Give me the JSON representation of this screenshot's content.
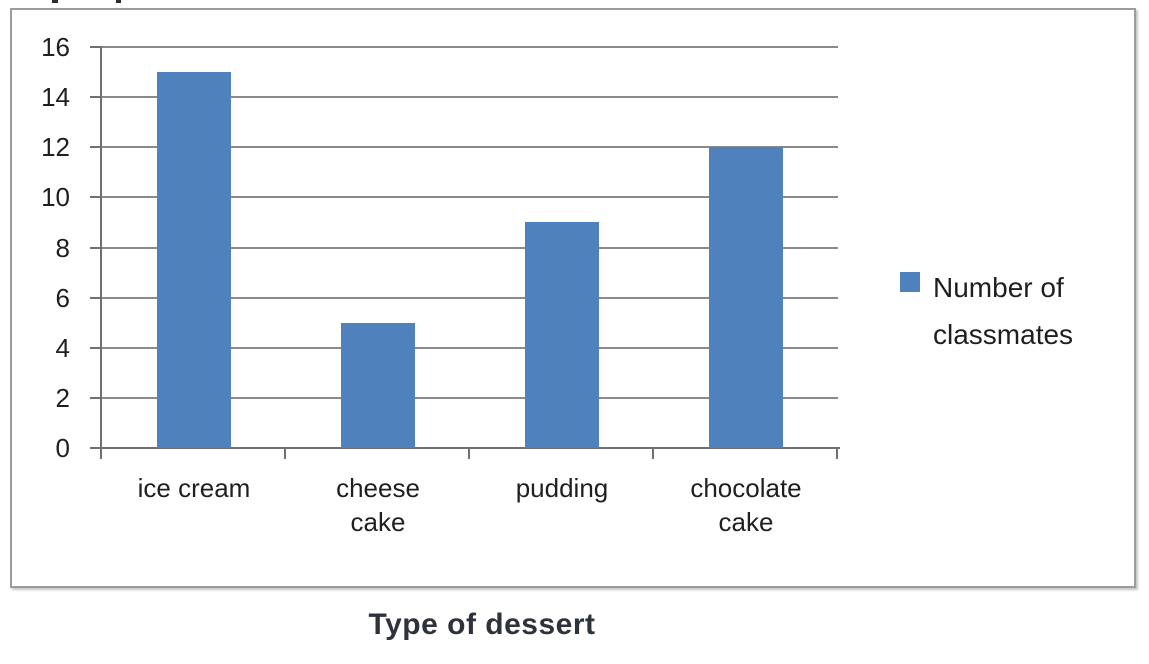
{
  "chart_data": {
    "type": "bar",
    "title": "",
    "categories": [
      "ice cream",
      "cheese cake",
      "pudding",
      "chocolate cake"
    ],
    "category_label_lines": [
      [
        "ice cream"
      ],
      [
        "cheese",
        "cake"
      ],
      [
        "pudding"
      ],
      [
        "chocolate",
        "cake"
      ]
    ],
    "series": [
      {
        "name": "Number of classmates",
        "values": [
          15,
          5,
          9,
          12
        ]
      }
    ],
    "xlabel": "Type of dessert",
    "ylabel": "",
    "ylim": [
      0,
      16
    ],
    "yticks": [
      0,
      2,
      4,
      6,
      8,
      10,
      12,
      14,
      16
    ],
    "grid": "horizontal",
    "legend_position": "right",
    "legend_lines": [
      "Number of",
      "classmates"
    ],
    "colors": {
      "bar": "#4f81bd",
      "gridline": "#8a8a8a",
      "axis": "#707070",
      "label_text": "#1f1f1f",
      "frame_border": "#9c9c9c"
    }
  }
}
